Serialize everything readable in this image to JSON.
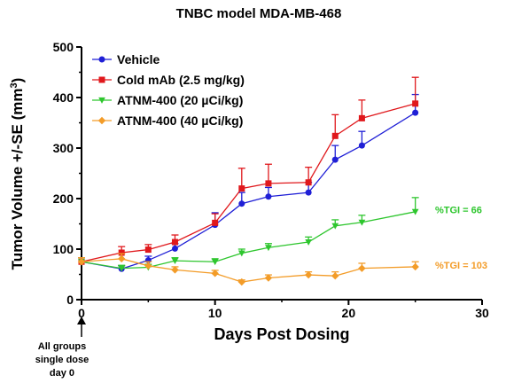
{
  "chart_data": {
    "type": "line",
    "title": "TNBC model MDA-MB-468",
    "xlabel": "Days Post Dosing",
    "ylabel": "Tumor Volume +/-SE (mm",
    "ylabel_sup": "3",
    "ylabel_end": ")",
    "xlim": [
      0,
      30
    ],
    "ylim": [
      0,
      500
    ],
    "xticks": [
      "0",
      "10",
      "20",
      "30"
    ],
    "yticks": [
      "0",
      "100",
      "200",
      "300",
      "400",
      "500"
    ],
    "grid": false,
    "legend_position": "top-left",
    "series": [
      {
        "name": "Vehicle",
        "color": "#1f1fd6",
        "marker": "circle",
        "x": [
          0,
          3,
          5,
          7,
          10,
          12,
          14,
          17,
          19,
          21,
          25
        ],
        "y": [
          75,
          61,
          78,
          101,
          148,
          190,
          204,
          212,
          277,
          305,
          370
        ],
        "err": [
          8,
          6,
          8,
          10,
          24,
          22,
          18,
          20,
          28,
          28,
          36
        ]
      },
      {
        "name": "Cold mAb (2.5 mg/kg)",
        "color": "#e0181c",
        "marker": "square",
        "x": [
          0,
          3,
          5,
          7,
          10,
          12,
          14,
          17,
          19,
          21,
          25
        ],
        "y": [
          75,
          93,
          99,
          114,
          152,
          220,
          230,
          232,
          324,
          359,
          388
        ],
        "err": [
          8,
          12,
          10,
          14,
          18,
          40,
          38,
          30,
          42,
          36,
          52
        ]
      },
      {
        "name": "ATNM-400 (20 µCi/kg)",
        "color": "#2ec62e",
        "marker": "triangle-down",
        "x": [
          0,
          3,
          5,
          7,
          10,
          12,
          14,
          17,
          19,
          21,
          25
        ],
        "y": [
          75,
          62,
          64,
          77,
          75,
          92,
          103,
          114,
          146,
          153,
          174
        ],
        "err": [
          8,
          6,
          6,
          6,
          6,
          8,
          8,
          10,
          12,
          14,
          28
        ]
      },
      {
        "name": "ATNM-400 (40 µCi/kg)",
        "color": "#f39c28",
        "marker": "diamond",
        "x": [
          0,
          3,
          5,
          7,
          10,
          12,
          14,
          17,
          19,
          21,
          25
        ],
        "y": [
          75,
          81,
          67,
          59,
          52,
          35,
          43,
          49,
          47,
          62,
          65
        ],
        "err": [
          8,
          10,
          8,
          6,
          6,
          4,
          6,
          6,
          8,
          10,
          10
        ]
      }
    ],
    "annotations": [
      {
        "text": "%TGI = 66",
        "color": "#2ec62e",
        "y": 178
      },
      {
        "text": "%TGI = 103",
        "color": "#f39c28",
        "y": 68
      }
    ]
  },
  "dosing_note": {
    "lines": [
      "All groups",
      "single dose",
      "day 0"
    ]
  }
}
